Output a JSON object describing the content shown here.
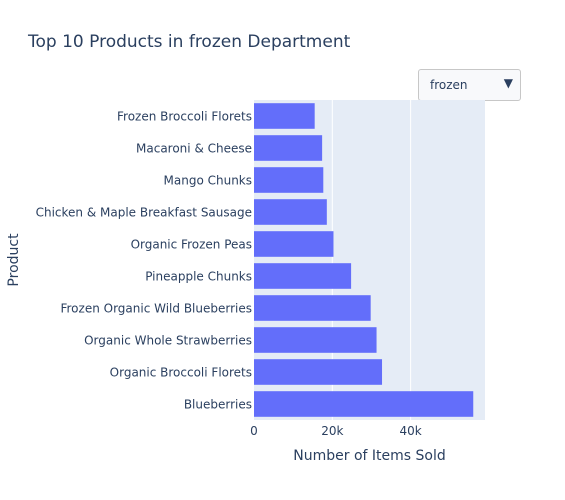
{
  "dropdown": {
    "selected": "frozen",
    "arrow_icon": "triangle-down-icon"
  },
  "colors": {
    "bar": "#636efa",
    "plot_bg": "#e5ecf6",
    "text": "#2a3f5f",
    "grid": "#ffffff"
  },
  "chart_data": {
    "type": "bar",
    "orientation": "horizontal",
    "title": "Top 10 Products in frozen Department",
    "xlabel": "Number of Items Sold",
    "ylabel": "Product",
    "xlim": [
      0,
      59000
    ],
    "xticks": [
      0,
      20000,
      40000
    ],
    "xtick_labels": [
      "0",
      "20k",
      "40k"
    ],
    "grid": true,
    "categories": [
      "Blueberries",
      "Organic Broccoli Florets",
      "Organic Whole Strawberries",
      "Frozen Organic Wild Blueberries",
      "Pineapple Chunks",
      "Organic Frozen Peas",
      "Chicken & Maple Breakfast Sausage",
      "Mango Chunks",
      "Macaroni & Cheese",
      "Frozen Broccoli Florets"
    ],
    "values": [
      56000,
      32700,
      31300,
      29800,
      24800,
      20300,
      18600,
      17700,
      17400,
      15500
    ]
  }
}
